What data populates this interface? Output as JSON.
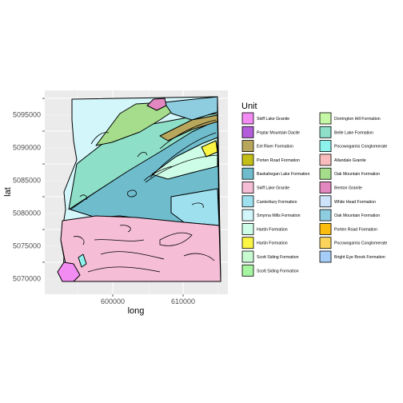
{
  "map": {
    "xlabel": "long",
    "ylabel": "lat",
    "x_ticks": [
      "600000",
      "610000"
    ],
    "y_ticks": [
      "5070000",
      "5075000",
      "5080000",
      "5085000",
      "5090000",
      "5095000"
    ],
    "legend_title": "Unit",
    "legend_items": [
      {
        "label": "Skiff Lake Granite",
        "color": "#f28cf2"
      },
      {
        "label": "Poplar Mountain Dacite",
        "color": "#b45ddb"
      },
      {
        "label": "Eel River Formation",
        "color": "#b8a65c"
      },
      {
        "label": "Porten Road Formation",
        "color": "#c3be18"
      },
      {
        "label": "Baskahegan Lake Formation",
        "color": "#6fbccd"
      },
      {
        "label": "Skiff Lake Granite",
        "color": "#f5bdd6"
      },
      {
        "label": "Canterbury Formation",
        "color": "#9fe0ef"
      },
      {
        "label": "Smyrna Mills Formation",
        "color": "#d3f6fb"
      },
      {
        "label": "Hartin Formation",
        "color": "#cdfde7"
      },
      {
        "label": "Hartin Formation",
        "color": "#faf542"
      },
      {
        "label": "Scott Siding Formation",
        "color": "#c8fbd2"
      },
      {
        "label": "Scott Siding Formation",
        "color": "#a6f5a0"
      },
      {
        "label": "Dorrington Hill Formation",
        "color": "#c4f7a6"
      },
      {
        "label": "Belle Lake Formation",
        "color": "#8ddfc8"
      },
      {
        "label": "Pocowogamis Conglomerate",
        "color": "#8df2ec"
      },
      {
        "label": "Allandale Granite",
        "color": "#f8bcbc"
      },
      {
        "label": "Oak Mountain Formation",
        "color": "#a6dd8c"
      },
      {
        "label": "Benton Granite",
        "color": "#e287c0"
      },
      {
        "label": "White Head Formation",
        "color": "#cde3fa"
      },
      {
        "label": "Oak Mountain Formation",
        "color": "#8ecde0"
      },
      {
        "label": "Porten Road Formation",
        "color": "#fbbc10"
      },
      {
        "label": "Pocowogamis Conglomerate",
        "color": "#fbd55b"
      },
      {
        "label": "Bright Eye Brook Formation",
        "color": "#a6cdf7"
      }
    ]
  }
}
